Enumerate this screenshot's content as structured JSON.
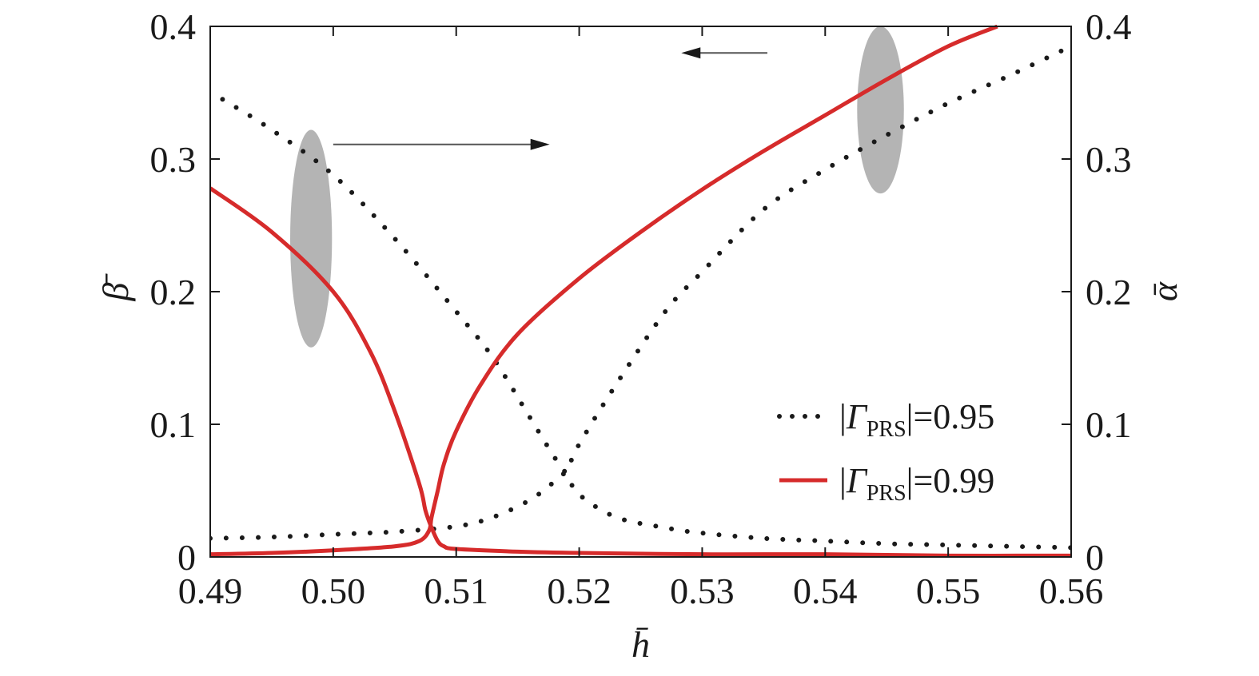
{
  "chart_data": {
    "type": "line",
    "title": "",
    "xlabel": "h̄",
    "ylabel_left": "β̄",
    "ylabel_right": "ᾱ",
    "xlim": [
      0.49,
      0.56
    ],
    "ylim_left": [
      0,
      0.4
    ],
    "ylim_right": [
      0,
      0.4
    ],
    "x_ticks": [
      "0.49",
      "0.50",
      "0.51",
      "0.52",
      "0.53",
      "0.54",
      "0.55",
      "0.56"
    ],
    "y_ticks_left": [
      "0",
      "0.1",
      "0.2",
      "0.3",
      "0.4"
    ],
    "y_ticks_right": [
      "0",
      "0.1",
      "0.2",
      "0.3",
      "0.4"
    ],
    "grid": false,
    "legend_position": "bottom-right",
    "legend": [
      {
        "prefix": "|",
        "symbol": "Γ",
        "subscript": "PRS",
        "suffix": "|=0.95",
        "style": "dotted",
        "color": "#1a1a1a"
      },
      {
        "prefix": "|",
        "symbol": "Γ",
        "subscript": "PRS",
        "suffix": "|=0.99",
        "style": "solid",
        "color": "#d62b2b"
      }
    ],
    "series": [
      {
        "legend_index": 0,
        "axis": "left",
        "style": "dotted",
        "color": "#1a1a1a",
        "x": [
          0.49,
          0.495,
          0.5,
          0.505,
          0.51,
          0.513,
          0.516,
          0.518,
          0.519,
          0.52,
          0.523,
          0.527,
          0.53,
          0.535,
          0.54,
          0.545,
          0.55,
          0.555,
          0.56
        ],
        "y": [
          0.014,
          0.015,
          0.017,
          0.019,
          0.023,
          0.03,
          0.043,
          0.057,
          0.066,
          0.085,
          0.13,
          0.185,
          0.215,
          0.262,
          0.292,
          0.318,
          0.342,
          0.363,
          0.385
        ]
      },
      {
        "legend_index": 0,
        "axis": "right",
        "style": "dotted",
        "color": "#1a1a1a",
        "x": [
          0.491,
          0.495,
          0.5,
          0.505,
          0.51,
          0.513,
          0.516,
          0.518,
          0.519,
          0.52,
          0.523,
          0.527,
          0.53,
          0.535,
          0.54,
          0.545,
          0.55,
          0.555,
          0.56
        ],
        "y": [
          0.345,
          0.322,
          0.288,
          0.24,
          0.185,
          0.15,
          0.105,
          0.075,
          0.062,
          0.047,
          0.03,
          0.022,
          0.018,
          0.014,
          0.012,
          0.01,
          0.009,
          0.008,
          0.007
        ]
      },
      {
        "legend_index": 1,
        "axis": "left",
        "style": "solid",
        "color": "#d62b2b",
        "x": [
          0.49,
          0.495,
          0.5,
          0.505,
          0.507,
          0.5078,
          0.508,
          0.5085,
          0.509,
          0.51,
          0.512,
          0.515,
          0.52,
          0.525,
          0.53,
          0.535,
          0.54,
          0.545,
          0.55,
          0.554
        ],
        "y": [
          0.002,
          0.003,
          0.005,
          0.008,
          0.012,
          0.02,
          0.03,
          0.05,
          0.07,
          0.095,
          0.13,
          0.168,
          0.21,
          0.245,
          0.277,
          0.306,
          0.333,
          0.36,
          0.385,
          0.4
        ]
      },
      {
        "legend_index": 1,
        "axis": "right",
        "style": "solid",
        "color": "#d62b2b",
        "x": [
          0.49,
          0.495,
          0.5,
          0.503,
          0.505,
          0.507,
          0.5075,
          0.508,
          0.5085,
          0.509,
          0.51,
          0.515,
          0.52,
          0.53,
          0.54,
          0.55,
          0.56
        ],
        "y": [
          0.278,
          0.245,
          0.2,
          0.155,
          0.11,
          0.055,
          0.035,
          0.022,
          0.012,
          0.008,
          0.006,
          0.004,
          0.003,
          0.002,
          0.002,
          0.001,
          0.001
        ]
      }
    ],
    "annotations": [
      {
        "shape": "ellipse",
        "color": "#b4b4b4",
        "cx": 0.4982,
        "cy": 0.24,
        "rx": 0.0017,
        "ry": 0.082
      },
      {
        "shape": "ellipse",
        "color": "#b4b4b4",
        "cx": 0.5445,
        "cy": 0.337,
        "rx": 0.0019,
        "ry": 0.063
      },
      {
        "shape": "arrow",
        "direction": "right",
        "target_axis": "right",
        "x_from": 0.5,
        "x_to": 0.5176,
        "y": 0.311
      },
      {
        "shape": "arrow",
        "direction": "left",
        "target_axis": "left",
        "x_from": 0.5353,
        "x_to": 0.5283,
        "y": 0.38
      }
    ]
  }
}
